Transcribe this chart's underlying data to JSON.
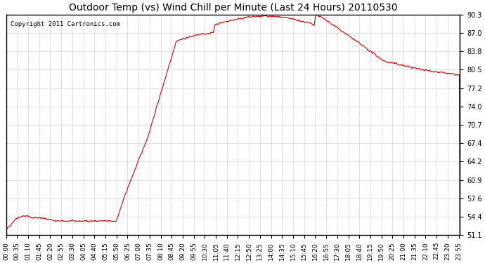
{
  "title": "Outdoor Temp (vs) Wind Chill per Minute (Last 24 Hours) 20110530",
  "copyright": "Copyright 2011 Cartronics.com",
  "line_color": "#cc0000",
  "background_color": "#ffffff",
  "grid_color": "#aaaaaa",
  "ylim": [
    51.1,
    90.3
  ],
  "yticks": [
    51.1,
    54.4,
    57.6,
    60.9,
    64.2,
    67.4,
    70.7,
    74.0,
    77.2,
    80.5,
    83.8,
    87.0,
    90.3
  ],
  "xtick_labels": [
    "00:00",
    "00:35",
    "01:10",
    "01:45",
    "02:20",
    "02:55",
    "03:30",
    "04:05",
    "04:40",
    "05:15",
    "05:50",
    "06:25",
    "07:00",
    "07:35",
    "08:10",
    "08:45",
    "09:20",
    "09:55",
    "10:30",
    "11:05",
    "11:40",
    "12:15",
    "12:50",
    "13:25",
    "14:00",
    "14:35",
    "15:10",
    "15:45",
    "16:20",
    "16:55",
    "17:30",
    "18:05",
    "18:40",
    "19:15",
    "19:50",
    "20:25",
    "21:00",
    "21:35",
    "22:10",
    "22:45",
    "23:20",
    "23:55"
  ],
  "num_points": 1440
}
